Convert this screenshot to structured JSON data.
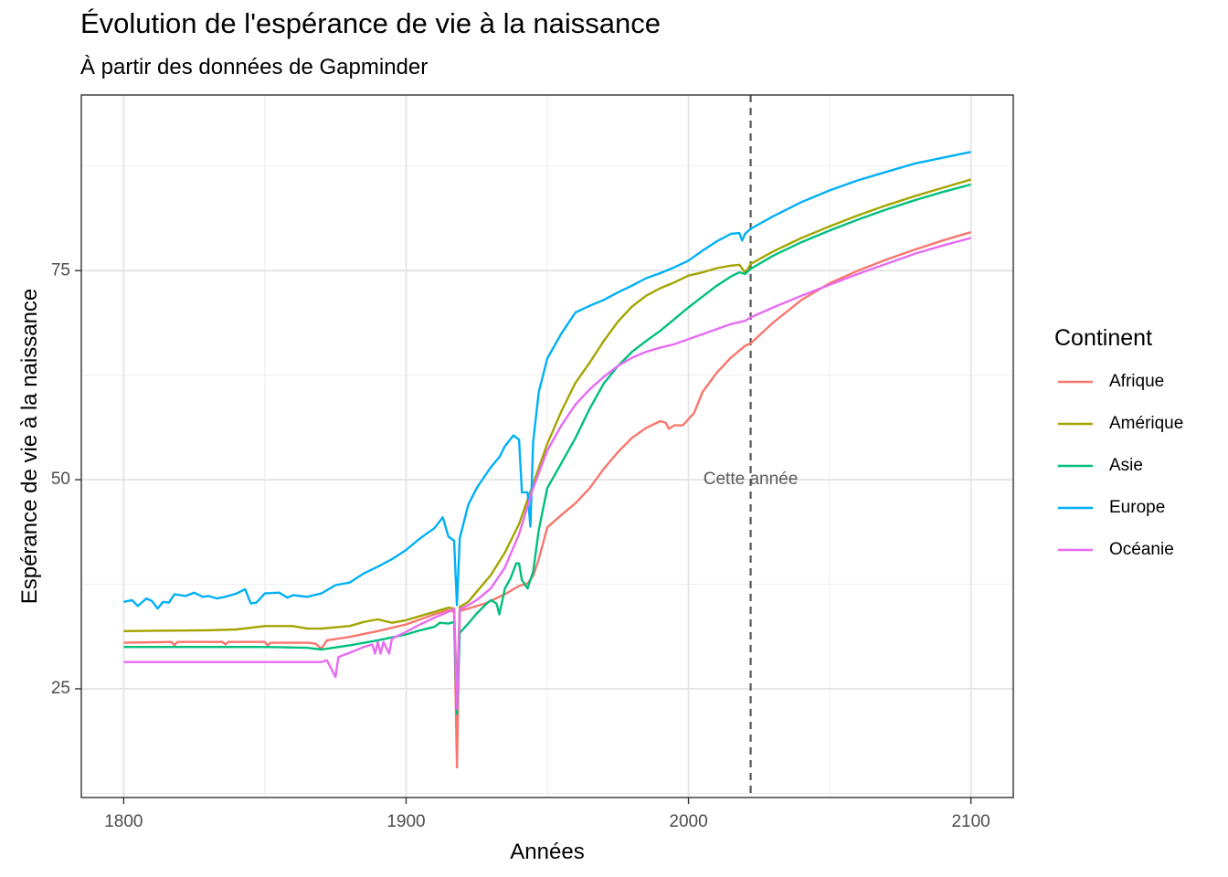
{
  "chart_data": {
    "type": "line",
    "title": "Évolution de l'espérance de vie à la naissance",
    "subtitle": "À partir des données de Gapminder",
    "xlabel": "Années",
    "ylabel": "Espérance de vie à la naissance",
    "xlim": [
      1785,
      2115
    ],
    "ylim": [
      12,
      96
    ],
    "x_ticks": [
      1800,
      1900,
      2000,
      2100
    ],
    "y_ticks": [
      25,
      50,
      75
    ],
    "grid": true,
    "legend": {
      "title": "Continent",
      "position": "right"
    },
    "vline": {
      "x": 2022,
      "label": "Cette année",
      "label_y": 50
    },
    "series": [
      {
        "name": "Afrique",
        "color": "#F8766D",
        "points": [
          [
            1800,
            30.5
          ],
          [
            1817,
            30.6
          ],
          [
            1818,
            30.2
          ],
          [
            1819,
            30.6
          ],
          [
            1835,
            30.6
          ],
          [
            1836,
            30.3
          ],
          [
            1837,
            30.6
          ],
          [
            1850,
            30.6
          ],
          [
            1851,
            30.2
          ],
          [
            1852,
            30.5
          ],
          [
            1865,
            30.5
          ],
          [
            1868,
            30.4
          ],
          [
            1870,
            29.8
          ],
          [
            1872,
            30.8
          ],
          [
            1880,
            31.2
          ],
          [
            1890,
            31.9
          ],
          [
            1900,
            32.7
          ],
          [
            1905,
            33.3
          ],
          [
            1910,
            33.9
          ],
          [
            1915,
            34.4
          ],
          [
            1917,
            34.2
          ],
          [
            1918,
            15.6
          ],
          [
            1919,
            34.3
          ],
          [
            1922,
            34.6
          ],
          [
            1928,
            35.2
          ],
          [
            1935,
            36.3
          ],
          [
            1940,
            37.3
          ],
          [
            1943,
            37.6
          ],
          [
            1945,
            38.5
          ],
          [
            1947,
            40.5
          ],
          [
            1950,
            44.3
          ],
          [
            1955,
            45.8
          ],
          [
            1960,
            47.2
          ],
          [
            1965,
            49.0
          ],
          [
            1970,
            51.3
          ],
          [
            1975,
            53.3
          ],
          [
            1980,
            55.0
          ],
          [
            1985,
            56.2
          ],
          [
            1990,
            57.0
          ],
          [
            1992,
            56.8
          ],
          [
            1993,
            56.1
          ],
          [
            1995,
            56.5
          ],
          [
            1998,
            56.5
          ],
          [
            2002,
            58.0
          ],
          [
            2005,
            60.5
          ],
          [
            2010,
            62.8
          ],
          [
            2015,
            64.6
          ],
          [
            2020,
            66.0
          ],
          [
            2022,
            66.3
          ],
          [
            2030,
            68.8
          ],
          [
            2040,
            71.5
          ],
          [
            2050,
            73.5
          ],
          [
            2060,
            75.0
          ],
          [
            2070,
            76.3
          ],
          [
            2080,
            77.5
          ],
          [
            2090,
            78.6
          ],
          [
            2100,
            79.6
          ]
        ]
      },
      {
        "name": "Amérique",
        "color": "#A3A500",
        "points": [
          [
            1800,
            31.9
          ],
          [
            1830,
            32.0
          ],
          [
            1840,
            32.1
          ],
          [
            1850,
            32.5
          ],
          [
            1860,
            32.5
          ],
          [
            1865,
            32.2
          ],
          [
            1870,
            32.2
          ],
          [
            1880,
            32.5
          ],
          [
            1885,
            33.0
          ],
          [
            1890,
            33.3
          ],
          [
            1895,
            32.9
          ],
          [
            1900,
            33.2
          ],
          [
            1905,
            33.7
          ],
          [
            1910,
            34.2
          ],
          [
            1915,
            34.7
          ],
          [
            1917,
            34.6
          ],
          [
            1918,
            24.0
          ],
          [
            1919,
            34.8
          ],
          [
            1922,
            35.4
          ],
          [
            1925,
            36.6
          ],
          [
            1930,
            38.6
          ],
          [
            1935,
            41.3
          ],
          [
            1940,
            44.7
          ],
          [
            1945,
            49.5
          ],
          [
            1950,
            54.3
          ],
          [
            1955,
            58.2
          ],
          [
            1960,
            61.6
          ],
          [
            1965,
            64.0
          ],
          [
            1970,
            66.6
          ],
          [
            1975,
            68.9
          ],
          [
            1980,
            70.7
          ],
          [
            1985,
            72.0
          ],
          [
            1990,
            72.9
          ],
          [
            1995,
            73.6
          ],
          [
            2000,
            74.4
          ],
          [
            2005,
            74.8
          ],
          [
            2010,
            75.3
          ],
          [
            2015,
            75.6
          ],
          [
            2018,
            75.7
          ],
          [
            2020,
            74.8
          ],
          [
            2021,
            75.2
          ],
          [
            2022,
            75.8
          ],
          [
            2030,
            77.3
          ],
          [
            2040,
            78.9
          ],
          [
            2050,
            80.3
          ],
          [
            2060,
            81.6
          ],
          [
            2070,
            82.8
          ],
          [
            2080,
            83.9
          ],
          [
            2090,
            84.9
          ],
          [
            2100,
            85.9
          ]
        ]
      },
      {
        "name": "Asie",
        "color": "#00BF7D",
        "points": [
          [
            1800,
            30.0
          ],
          [
            1850,
            30.0
          ],
          [
            1865,
            29.9
          ],
          [
            1870,
            29.7
          ],
          [
            1880,
            30.2
          ],
          [
            1890,
            30.8
          ],
          [
            1900,
            31.5
          ],
          [
            1905,
            32.0
          ],
          [
            1910,
            32.4
          ],
          [
            1912,
            32.9
          ],
          [
            1915,
            32.8
          ],
          [
            1917,
            33.0
          ],
          [
            1918,
            22.0
          ],
          [
            1919,
            31.7
          ],
          [
            1922,
            32.8
          ],
          [
            1925,
            34.0
          ],
          [
            1928,
            35.0
          ],
          [
            1930,
            35.6
          ],
          [
            1932,
            35.2
          ],
          [
            1933,
            33.9
          ],
          [
            1935,
            37.0
          ],
          [
            1937,
            38.2
          ],
          [
            1939,
            40.0
          ],
          [
            1940,
            40.0
          ],
          [
            1941,
            38.0
          ],
          [
            1943,
            37.0
          ],
          [
            1945,
            39.0
          ],
          [
            1947,
            44.0
          ],
          [
            1950,
            49.0
          ],
          [
            1955,
            52.0
          ],
          [
            1960,
            55.0
          ],
          [
            1965,
            58.5
          ],
          [
            1970,
            61.5
          ],
          [
            1975,
            63.6
          ],
          [
            1980,
            65.3
          ],
          [
            1985,
            66.6
          ],
          [
            1990,
            67.8
          ],
          [
            1995,
            69.2
          ],
          [
            2000,
            70.6
          ],
          [
            2005,
            71.9
          ],
          [
            2010,
            73.2
          ],
          [
            2015,
            74.3
          ],
          [
            2018,
            74.8
          ],
          [
            2020,
            74.6
          ],
          [
            2022,
            75.2
          ],
          [
            2030,
            76.8
          ],
          [
            2040,
            78.4
          ],
          [
            2050,
            79.8
          ],
          [
            2060,
            81.1
          ],
          [
            2070,
            82.3
          ],
          [
            2080,
            83.4
          ],
          [
            2090,
            84.4
          ],
          [
            2100,
            85.3
          ]
        ]
      },
      {
        "name": "Europe",
        "color": "#00B0F6",
        "points": [
          [
            1800,
            35.4
          ],
          [
            1803,
            35.6
          ],
          [
            1805,
            34.9
          ],
          [
            1808,
            35.8
          ],
          [
            1810,
            35.5
          ],
          [
            1812,
            34.6
          ],
          [
            1814,
            35.4
          ],
          [
            1816,
            35.3
          ],
          [
            1818,
            36.3
          ],
          [
            1822,
            36.1
          ],
          [
            1825,
            36.5
          ],
          [
            1828,
            36.0
          ],
          [
            1830,
            36.1
          ],
          [
            1833,
            35.8
          ],
          [
            1836,
            36.0
          ],
          [
            1840,
            36.4
          ],
          [
            1843,
            36.9
          ],
          [
            1845,
            35.2
          ],
          [
            1847,
            35.3
          ],
          [
            1850,
            36.4
          ],
          [
            1855,
            36.5
          ],
          [
            1858,
            35.9
          ],
          [
            1860,
            36.2
          ],
          [
            1865,
            36.0
          ],
          [
            1870,
            36.4
          ],
          [
            1875,
            37.4
          ],
          [
            1880,
            37.7
          ],
          [
            1885,
            38.8
          ],
          [
            1890,
            39.6
          ],
          [
            1895,
            40.5
          ],
          [
            1900,
            41.6
          ],
          [
            1905,
            43.0
          ],
          [
            1910,
            44.2
          ],
          [
            1913,
            45.5
          ],
          [
            1915,
            43.2
          ],
          [
            1917,
            42.7
          ],
          [
            1918,
            35.0
          ],
          [
            1919,
            43.0
          ],
          [
            1922,
            47.0
          ],
          [
            1925,
            49.0
          ],
          [
            1928,
            50.5
          ],
          [
            1930,
            51.5
          ],
          [
            1933,
            52.7
          ],
          [
            1935,
            54.0
          ],
          [
            1938,
            55.3
          ],
          [
            1940,
            54.8
          ],
          [
            1941,
            48.5
          ],
          [
            1943,
            48.5
          ],
          [
            1944,
            44.4
          ],
          [
            1945,
            54.5
          ],
          [
            1947,
            60.5
          ],
          [
            1950,
            64.5
          ],
          [
            1955,
            67.5
          ],
          [
            1960,
            70.0
          ],
          [
            1965,
            70.8
          ],
          [
            1970,
            71.5
          ],
          [
            1975,
            72.4
          ],
          [
            1980,
            73.2
          ],
          [
            1985,
            74.1
          ],
          [
            1990,
            74.7
          ],
          [
            1995,
            75.4
          ],
          [
            2000,
            76.2
          ],
          [
            2005,
            77.4
          ],
          [
            2010,
            78.5
          ],
          [
            2015,
            79.4
          ],
          [
            2018,
            79.5
          ],
          [
            2019,
            78.6
          ],
          [
            2020,
            79.4
          ],
          [
            2022,
            80.0
          ],
          [
            2030,
            81.5
          ],
          [
            2040,
            83.2
          ],
          [
            2050,
            84.6
          ],
          [
            2060,
            85.8
          ],
          [
            2070,
            86.8
          ],
          [
            2080,
            87.8
          ],
          [
            2090,
            88.5
          ],
          [
            2100,
            89.2
          ]
        ]
      },
      {
        "name": "Océanie",
        "color": "#E76BF3",
        "points": [
          [
            1800,
            28.2
          ],
          [
            1870,
            28.2
          ],
          [
            1872,
            28.4
          ],
          [
            1875,
            26.4
          ],
          [
            1876,
            28.8
          ],
          [
            1880,
            29.3
          ],
          [
            1885,
            30.0
          ],
          [
            1888,
            30.3
          ],
          [
            1889,
            29.2
          ],
          [
            1890,
            30.6
          ],
          [
            1891,
            29.2
          ],
          [
            1892,
            30.6
          ],
          [
            1894,
            29.2
          ],
          [
            1895,
            31.0
          ],
          [
            1900,
            31.8
          ],
          [
            1905,
            32.7
          ],
          [
            1910,
            33.5
          ],
          [
            1915,
            34.2
          ],
          [
            1917,
            34.6
          ],
          [
            1918,
            22.6
          ],
          [
            1919,
            34.5
          ],
          [
            1922,
            35.0
          ],
          [
            1925,
            35.6
          ],
          [
            1930,
            37.0
          ],
          [
            1935,
            39.5
          ],
          [
            1940,
            43.5
          ],
          [
            1945,
            49.0
          ],
          [
            1950,
            53.5
          ],
          [
            1955,
            56.5
          ],
          [
            1960,
            59.0
          ],
          [
            1965,
            60.8
          ],
          [
            1970,
            62.3
          ],
          [
            1975,
            63.6
          ],
          [
            1980,
            64.6
          ],
          [
            1985,
            65.3
          ],
          [
            1990,
            65.8
          ],
          [
            1995,
            66.2
          ],
          [
            2000,
            66.8
          ],
          [
            2005,
            67.4
          ],
          [
            2010,
            68.0
          ],
          [
            2015,
            68.6
          ],
          [
            2020,
            69.0
          ],
          [
            2022,
            69.4
          ],
          [
            2030,
            70.6
          ],
          [
            2040,
            72.0
          ],
          [
            2050,
            73.3
          ],
          [
            2060,
            74.6
          ],
          [
            2070,
            75.8
          ],
          [
            2080,
            77.0
          ],
          [
            2090,
            78.0
          ],
          [
            2100,
            78.9
          ]
        ]
      }
    ]
  }
}
